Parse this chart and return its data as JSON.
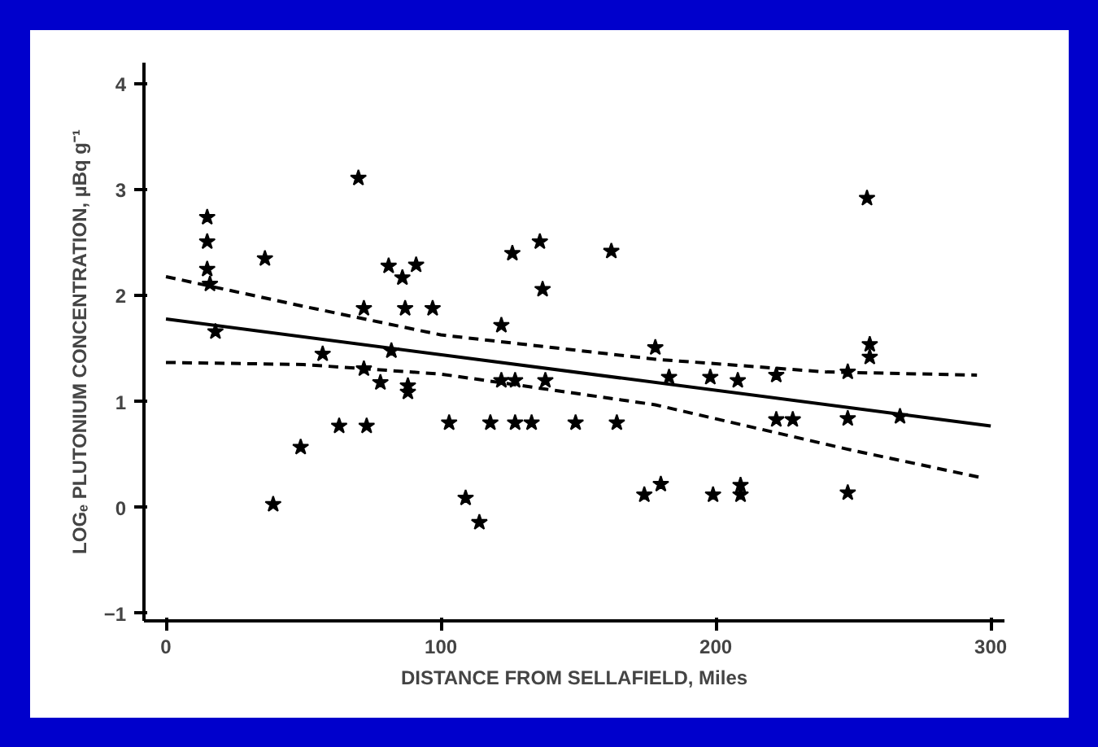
{
  "chart_data": {
    "type": "scatter",
    "xlabel": "DISTANCE FROM SELLAFIELD, Miles",
    "ylabel": "LOGₑ PLUTONIUM CONCENTRATION, µBq g⁻¹",
    "xlim": [
      -8,
      305
    ],
    "ylim": [
      -1.07,
      4.2
    ],
    "xticks": [
      0,
      100,
      200,
      300
    ],
    "yticks": [
      -1,
      0,
      1,
      2,
      3,
      4
    ],
    "grid": false,
    "series": [
      {
        "marker": "star",
        "color": "#000000",
        "x": [
          15,
          15,
          15,
          16,
          18,
          36,
          70,
          81,
          91,
          86,
          72,
          87,
          97,
          126,
          136,
          162,
          137,
          122,
          57,
          82,
          72,
          78,
          88,
          88,
          49,
          63,
          73,
          39,
          103,
          178,
          256,
          256,
          122,
          127,
          138,
          183,
          198,
          208,
          222,
          248,
          118,
          127,
          133,
          149,
          164,
          222,
          228,
          248,
          267,
          109,
          114,
          174,
          180,
          199,
          209,
          209,
          248,
          255
        ],
        "values": [
          2.74,
          2.51,
          2.25,
          2.11,
          1.66,
          2.35,
          3.11,
          2.28,
          2.29,
          2.17,
          1.88,
          1.88,
          1.88,
          2.4,
          2.51,
          2.42,
          2.06,
          1.72,
          1.45,
          1.48,
          1.31,
          1.18,
          1.15,
          1.09,
          0.57,
          0.77,
          0.77,
          0.03,
          0.8,
          1.51,
          1.54,
          1.42,
          1.2,
          1.2,
          1.2,
          1.23,
          1.23,
          1.2,
          1.25,
          1.28,
          0.8,
          0.8,
          0.8,
          0.8,
          0.8,
          0.83,
          0.83,
          0.84,
          0.86,
          0.09,
          -0.14,
          0.12,
          0.22,
          0.12,
          0.21,
          0.12,
          0.14,
          2.92
        ]
      },
      {
        "type": "line",
        "color": "#000000",
        "line_style": "solid",
        "marker": "none",
        "x": [
          0,
          300
        ],
        "values": [
          1.78,
          0.77
        ]
      },
      {
        "type": "line",
        "color": "#000000",
        "line_style": "dashed",
        "marker": "none",
        "x": [
          0,
          50,
          100,
          178,
          240,
          295
        ],
        "values": [
          2.18,
          1.9,
          1.63,
          1.4,
          1.28,
          1.25
        ]
      },
      {
        "type": "line",
        "color": "#000000",
        "line_style": "dashed",
        "marker": "none",
        "x": [
          0,
          50,
          100,
          178,
          248,
          297
        ],
        "values": [
          1.37,
          1.35,
          1.26,
          0.97,
          0.55,
          0.28
        ]
      }
    ]
  }
}
